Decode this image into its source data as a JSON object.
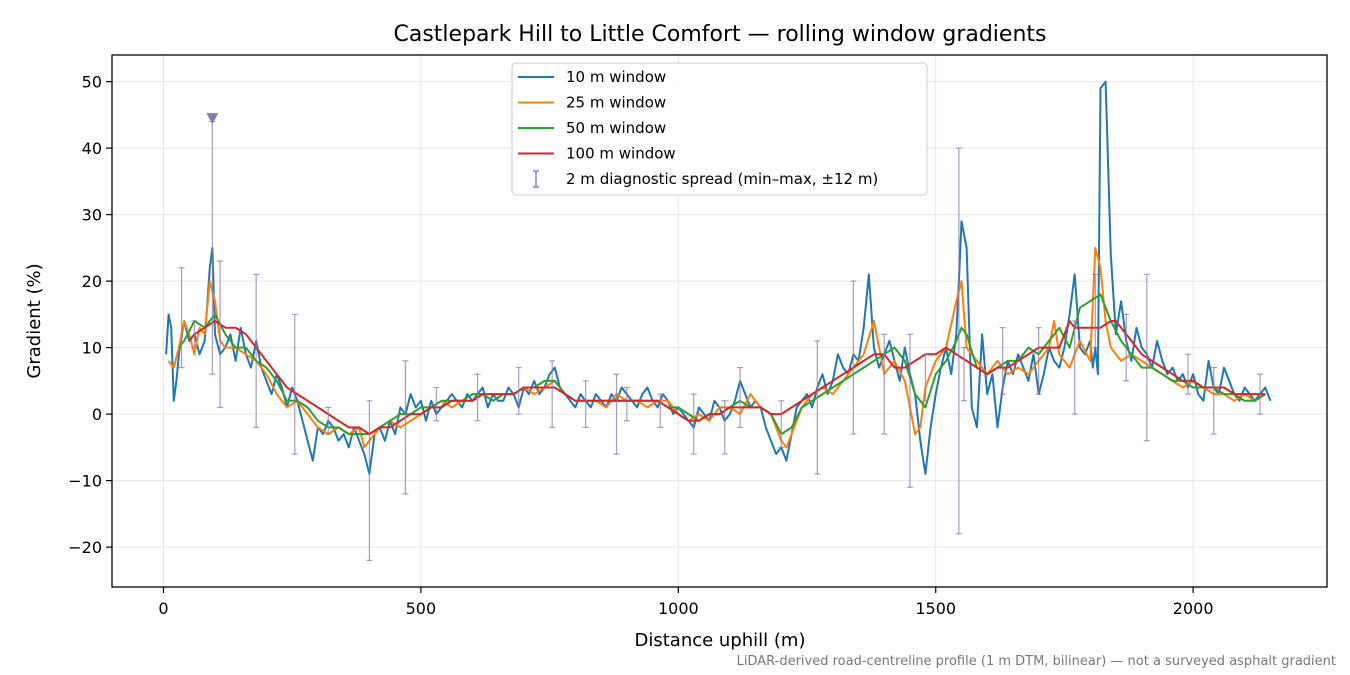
{
  "chart_data": {
    "type": "line",
    "title": "Castlepark Hill to Little Comfort — rolling window gradients",
    "xlabel": "Distance uphill (m)",
    "ylabel": "Gradient (%)",
    "xlim": [
      -100,
      2260
    ],
    "ylim": [
      -26,
      54
    ],
    "xticks": [
      0,
      500,
      1000,
      1500,
      2000
    ],
    "xtick_labels": [
      "0",
      "500",
      "1000",
      "1500",
      "2000"
    ],
    "yticks": [
      -20,
      -10,
      0,
      10,
      20,
      30,
      40,
      50
    ],
    "ytick_labels": [
      "−20",
      "−10",
      "0",
      "10",
      "20",
      "30",
      "40",
      "50"
    ],
    "grid": true,
    "legend_position": "top-center",
    "footnote": "LiDAR-derived road-centreline profile (1 m DTM, bilinear) — not a surveyed asphalt gradient",
    "series": [
      {
        "name": "10 m window",
        "color": "#1f77b4",
        "x": [
          5,
          10,
          15,
          20,
          25,
          30,
          40,
          50,
          60,
          70,
          80,
          90,
          95,
          100,
          110,
          120,
          130,
          140,
          150,
          160,
          170,
          180,
          190,
          200,
          210,
          220,
          230,
          240,
          250,
          260,
          270,
          280,
          290,
          300,
          310,
          320,
          330,
          340,
          350,
          360,
          370,
          380,
          390,
          400,
          410,
          420,
          430,
          440,
          450,
          460,
          470,
          480,
          490,
          500,
          510,
          520,
          530,
          540,
          550,
          560,
          570,
          580,
          590,
          600,
          610,
          620,
          630,
          640,
          650,
          660,
          670,
          680,
          690,
          700,
          710,
          720,
          730,
          740,
          750,
          760,
          770,
          780,
          790,
          800,
          810,
          820,
          830,
          840,
          850,
          860,
          870,
          880,
          890,
          900,
          910,
          920,
          930,
          940,
          950,
          960,
          970,
          980,
          990,
          1000,
          1010,
          1020,
          1030,
          1040,
          1050,
          1060,
          1070,
          1080,
          1090,
          1100,
          1110,
          1120,
          1130,
          1140,
          1150,
          1160,
          1170,
          1180,
          1190,
          1200,
          1210,
          1220,
          1230,
          1240,
          1250,
          1260,
          1270,
          1280,
          1290,
          1300,
          1310,
          1320,
          1330,
          1340,
          1350,
          1360,
          1370,
          1380,
          1390,
          1400,
          1410,
          1420,
          1430,
          1440,
          1450,
          1460,
          1470,
          1480,
          1490,
          1500,
          1510,
          1520,
          1530,
          1540,
          1545,
          1550,
          1560,
          1570,
          1580,
          1590,
          1600,
          1610,
          1620,
          1630,
          1640,
          1650,
          1660,
          1670,
          1680,
          1690,
          1700,
          1710,
          1720,
          1730,
          1740,
          1750,
          1760,
          1770,
          1780,
          1790,
          1800,
          1805,
          1810,
          1815,
          1820,
          1830,
          1840,
          1850,
          1860,
          1870,
          1880,
          1890,
          1900,
          1910,
          1920,
          1930,
          1940,
          1950,
          1960,
          1970,
          1980,
          1990,
          2000,
          2010,
          2020,
          2030,
          2040,
          2050,
          2060,
          2070,
          2080,
          2090,
          2100,
          2110,
          2120,
          2130,
          2140,
          2150
        ],
        "y": [
          9,
          15,
          13,
          2,
          5,
          9,
          14,
          11,
          12,
          9,
          11,
          22,
          25,
          12,
          9,
          10,
          12,
          8,
          13,
          9,
          7,
          11,
          7,
          5,
          3,
          6,
          4,
          1,
          4,
          2,
          -1,
          -4,
          -7,
          -2,
          -3,
          -1,
          -2,
          -4,
          -3,
          -5,
          -2,
          -4,
          -6,
          -9,
          -3,
          -2,
          -4,
          -1,
          -3,
          1,
          0,
          3,
          1,
          2,
          -1,
          2,
          0,
          1,
          2,
          3,
          2,
          1,
          3,
          2,
          3,
          4,
          1,
          3,
          2,
          2,
          4,
          3,
          1,
          4,
          3,
          5,
          3,
          4,
          6,
          7,
          4,
          3,
          2,
          1,
          3,
          2,
          1,
          3,
          2,
          1,
          3,
          2,
          4,
          3,
          2,
          1,
          3,
          4,
          2,
          1,
          3,
          2,
          0,
          1,
          0,
          -1,
          -2,
          1,
          0,
          -1,
          2,
          1,
          -1,
          0,
          2,
          5,
          3,
          1,
          2,
          1,
          -2,
          -4,
          -6,
          -5,
          -7,
          -3,
          1,
          2,
          3,
          1,
          4,
          6,
          3,
          5,
          9,
          7,
          6,
          9,
          8,
          13,
          21,
          10,
          7,
          9,
          11,
          8,
          5,
          10,
          6,
          3,
          -4,
          -9,
          -2,
          3,
          7,
          10,
          6,
          12,
          20,
          29,
          25,
          1,
          -2,
          12,
          3,
          6,
          -2,
          4,
          8,
          6,
          9,
          7,
          5,
          9,
          3,
          6,
          10,
          8,
          7,
          10,
          15,
          21,
          10,
          9,
          11,
          7,
          10,
          6,
          49,
          50,
          24,
          12,
          17,
          11,
          8,
          13,
          10,
          9,
          7,
          11,
          8,
          6,
          7,
          5,
          6,
          4,
          6,
          3,
          2,
          8,
          4,
          3,
          7,
          5,
          3,
          2,
          4,
          3,
          2,
          3,
          4,
          2
        ]
      },
      {
        "name": "25 m window",
        "color": "#ff7f0e",
        "x": [
          10,
          20,
          30,
          40,
          50,
          60,
          70,
          80,
          90,
          100,
          110,
          120,
          140,
          160,
          180,
          200,
          220,
          240,
          260,
          280,
          300,
          320,
          340,
          360,
          380,
          390,
          400,
          420,
          440,
          460,
          480,
          500,
          520,
          540,
          560,
          580,
          600,
          620,
          640,
          660,
          680,
          700,
          720,
          740,
          760,
          780,
          800,
          820,
          840,
          860,
          880,
          900,
          920,
          940,
          960,
          980,
          1000,
          1020,
          1040,
          1060,
          1080,
          1100,
          1120,
          1140,
          1160,
          1180,
          1190,
          1200,
          1210,
          1220,
          1240,
          1260,
          1280,
          1300,
          1320,
          1340,
          1360,
          1380,
          1390,
          1400,
          1420,
          1440,
          1450,
          1460,
          1470,
          1480,
          1500,
          1520,
          1540,
          1550,
          1560,
          1580,
          1600,
          1620,
          1640,
          1660,
          1680,
          1700,
          1720,
          1730,
          1740,
          1760,
          1780,
          1800,
          1810,
          1820,
          1830,
          1840,
          1860,
          1880,
          1900,
          1920,
          1940,
          1960,
          1980,
          2000,
          2020,
          2040,
          2060,
          2080,
          2100,
          2120,
          2140
        ],
        "y": [
          8,
          7,
          10,
          14,
          12,
          9,
          13,
          12,
          20,
          17,
          11,
          10,
          10,
          9,
          8,
          6,
          3,
          1,
          2,
          0,
          -2,
          -3,
          -2,
          -3,
          -2,
          -5,
          -4,
          -2,
          -1,
          -2,
          -1,
          0,
          1,
          2,
          1,
          2,
          2,
          3,
          2,
          3,
          3,
          4,
          3,
          4,
          5,
          3,
          2,
          2,
          2,
          1,
          3,
          2,
          2,
          1,
          2,
          2,
          0,
          -1,
          0,
          -1,
          1,
          1,
          0,
          3,
          1,
          0,
          -2,
          -4,
          -5,
          -3,
          1,
          3,
          4,
          3,
          5,
          7,
          9,
          14,
          10,
          6,
          8,
          5,
          1,
          -3,
          -2,
          4,
          8,
          10,
          17,
          20,
          10,
          8,
          6,
          8,
          6,
          7,
          6,
          8,
          10,
          14,
          9,
          7,
          11,
          8,
          25,
          22,
          14,
          10,
          8,
          9,
          8,
          7,
          6,
          5,
          4,
          5,
          4,
          3,
          3,
          2,
          3,
          2,
          3
        ]
      },
      {
        "name": "50 m window",
        "color": "#2ca02c",
        "x": [
          30,
          40,
          60,
          80,
          90,
          100,
          120,
          140,
          160,
          180,
          200,
          220,
          240,
          260,
          280,
          300,
          320,
          340,
          360,
          380,
          400,
          420,
          440,
          460,
          480,
          500,
          520,
          540,
          560,
          580,
          600,
          620,
          640,
          660,
          680,
          700,
          720,
          740,
          760,
          780,
          800,
          820,
          840,
          860,
          880,
          900,
          920,
          940,
          960,
          980,
          1000,
          1020,
          1040,
          1060,
          1080,
          1100,
          1120,
          1140,
          1160,
          1180,
          1200,
          1220,
          1240,
          1260,
          1280,
          1300,
          1320,
          1340,
          1360,
          1380,
          1400,
          1420,
          1440,
          1460,
          1480,
          1500,
          1520,
          1540,
          1550,
          1560,
          1580,
          1600,
          1620,
          1640,
          1660,
          1680,
          1700,
          1720,
          1740,
          1760,
          1780,
          1800,
          1820,
          1840,
          1860,
          1880,
          1900,
          1920,
          1940,
          1960,
          1980,
          2000,
          2020,
          2040,
          2060,
          2080,
          2100,
          2120,
          2140
        ],
        "y": [
          10,
          11,
          14,
          13,
          14,
          15,
          12,
          10,
          10,
          8,
          7,
          5,
          2,
          2,
          1,
          -1,
          -2,
          -2,
          -3,
          -3,
          -3,
          -2,
          -1,
          0,
          0,
          1,
          1,
          2,
          2,
          2,
          3,
          3,
          2,
          3,
          3,
          4,
          4,
          5,
          5,
          3,
          2,
          2,
          2,
          2,
          2,
          2,
          2,
          2,
          2,
          1,
          1,
          0,
          -1,
          0,
          0,
          1,
          2,
          1,
          1,
          0,
          -3,
          -2,
          1,
          2,
          3,
          4,
          5,
          6,
          7,
          8,
          9,
          10,
          8,
          3,
          1,
          6,
          8,
          11,
          13,
          12,
          7,
          6,
          7,
          8,
          8,
          10,
          9,
          11,
          13,
          10,
          16,
          17,
          18,
          14,
          11,
          9,
          7,
          7,
          6,
          5,
          5,
          4,
          4,
          4,
          3,
          3,
          2,
          2,
          3
        ]
      },
      {
        "name": "100 m window",
        "color": "#d62728",
        "x": [
          50,
          60,
          80,
          100,
          120,
          140,
          160,
          180,
          200,
          220,
          240,
          260,
          280,
          300,
          320,
          340,
          360,
          380,
          400,
          420,
          440,
          460,
          480,
          500,
          520,
          540,
          560,
          580,
          600,
          620,
          640,
          660,
          680,
          700,
          720,
          740,
          760,
          780,
          800,
          820,
          840,
          860,
          880,
          900,
          920,
          940,
          960,
          980,
          1000,
          1020,
          1040,
          1060,
          1080,
          1100,
          1120,
          1140,
          1160,
          1180,
          1200,
          1220,
          1240,
          1260,
          1280,
          1300,
          1320,
          1340,
          1360,
          1380,
          1400,
          1420,
          1440,
          1460,
          1480,
          1500,
          1520,
          1540,
          1560,
          1580,
          1600,
          1620,
          1640,
          1660,
          1680,
          1700,
          1720,
          1740,
          1760,
          1770,
          1780,
          1800,
          1820,
          1840,
          1850,
          1860,
          1880,
          1900,
          1920,
          1940,
          1960,
          1980,
          2000,
          2020,
          2040,
          2060,
          2080,
          2100,
          2120,
          2140
        ],
        "y": [
          11,
          12,
          13,
          14,
          13,
          13,
          12,
          10,
          8,
          6,
          4,
          3,
          2,
          1,
          0,
          -1,
          -2,
          -2,
          -3,
          -2,
          -2,
          -1,
          0,
          0,
          1,
          1,
          2,
          2,
          2,
          3,
          3,
          3,
          3,
          4,
          4,
          4,
          4,
          3,
          2,
          2,
          2,
          2,
          2,
          2,
          2,
          2,
          2,
          1,
          0,
          -1,
          -1,
          0,
          0,
          1,
          1,
          1,
          1,
          0,
          0,
          1,
          2,
          3,
          4,
          5,
          6,
          7,
          8,
          9,
          9,
          7,
          7,
          8,
          9,
          9,
          10,
          9,
          8,
          7,
          6,
          7,
          7,
          8,
          9,
          10,
          10,
          10,
          14,
          13,
          13,
          13,
          13,
          14,
          14,
          13,
          11,
          9,
          8,
          7,
          6,
          5,
          5,
          4,
          4,
          4,
          3,
          3,
          3,
          3
        ]
      },
      {
        "name": "2 m diagnostic spread (min–max, ±12 m)",
        "type": "errorbar",
        "color": "#8c7aab",
        "x": [
          35,
          60,
          95,
          110,
          180,
          255,
          320,
          400,
          470,
          530,
          610,
          690,
          755,
          820,
          880,
          900,
          965,
          1030,
          1090,
          1120,
          1200,
          1270,
          1340,
          1400,
          1450,
          1480,
          1545,
          1555,
          1630,
          1700,
          1770,
          1810,
          1870,
          1910,
          1990,
          2040,
          2130
        ],
        "low": [
          7,
          10,
          6,
          1,
          -2,
          -6,
          -3,
          -22,
          -12,
          -1,
          -1,
          0,
          -2,
          -2,
          -6,
          -1,
          -2,
          -6,
          -6,
          -2,
          -5,
          -9,
          -3,
          -3,
          -11,
          2,
          -18,
          2,
          3,
          3,
          0,
          10,
          5,
          -4,
          3,
          -3,
          0
        ],
        "high": [
          22,
          14,
          44,
          23,
          21,
          15,
          1,
          2,
          8,
          4,
          6,
          7,
          8,
          5,
          6,
          4,
          3,
          3,
          2,
          7,
          2,
          11,
          20,
          12,
          12,
          9,
          40,
          10,
          13,
          13,
          14,
          21,
          15,
          21,
          9,
          7,
          6
        ]
      }
    ],
    "markers": [
      {
        "x": 95,
        "y": 44.5,
        "symbol": "triangle-down",
        "color": "#8c7aab"
      }
    ]
  }
}
